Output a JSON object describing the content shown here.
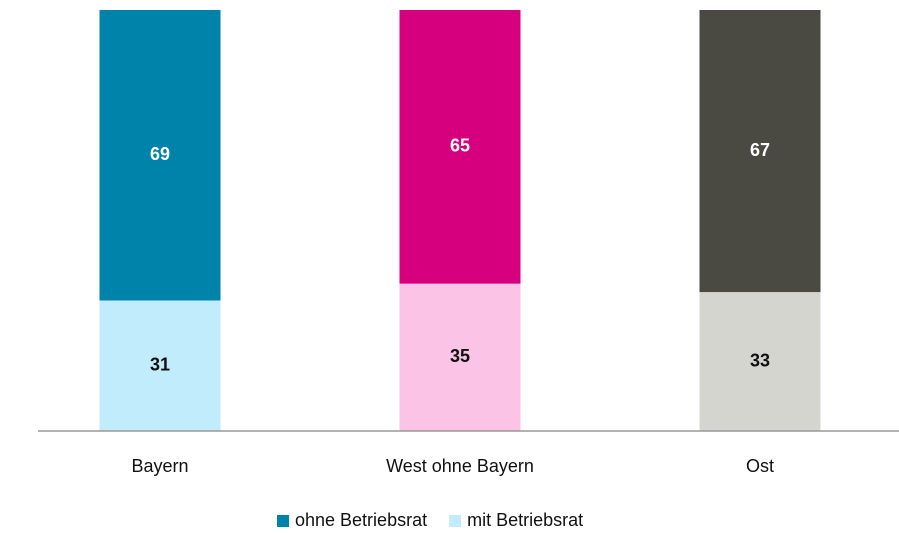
{
  "chart_data": {
    "type": "stacked-bar",
    "categories": [
      "Bayern",
      "West ohne Bayern",
      "Ost"
    ],
    "series": [
      {
        "name": "mit Betriebsrat",
        "color": "#c0ecfb",
        "colors": [
          "#c0ecfb",
          "#fbc3e6",
          "#d5d5d0"
        ],
        "label_color": "#111111",
        "values": [
          31,
          35,
          33
        ]
      },
      {
        "name": "ohne Betriebsrat",
        "color": "#0083ab",
        "colors": [
          "#0083ab",
          "#d6007e",
          "#4a4a42"
        ],
        "label_color": "#ffffff",
        "values": [
          69,
          65,
          67
        ]
      }
    ],
    "ylim": [
      0,
      100
    ],
    "legend": "bottom"
  }
}
